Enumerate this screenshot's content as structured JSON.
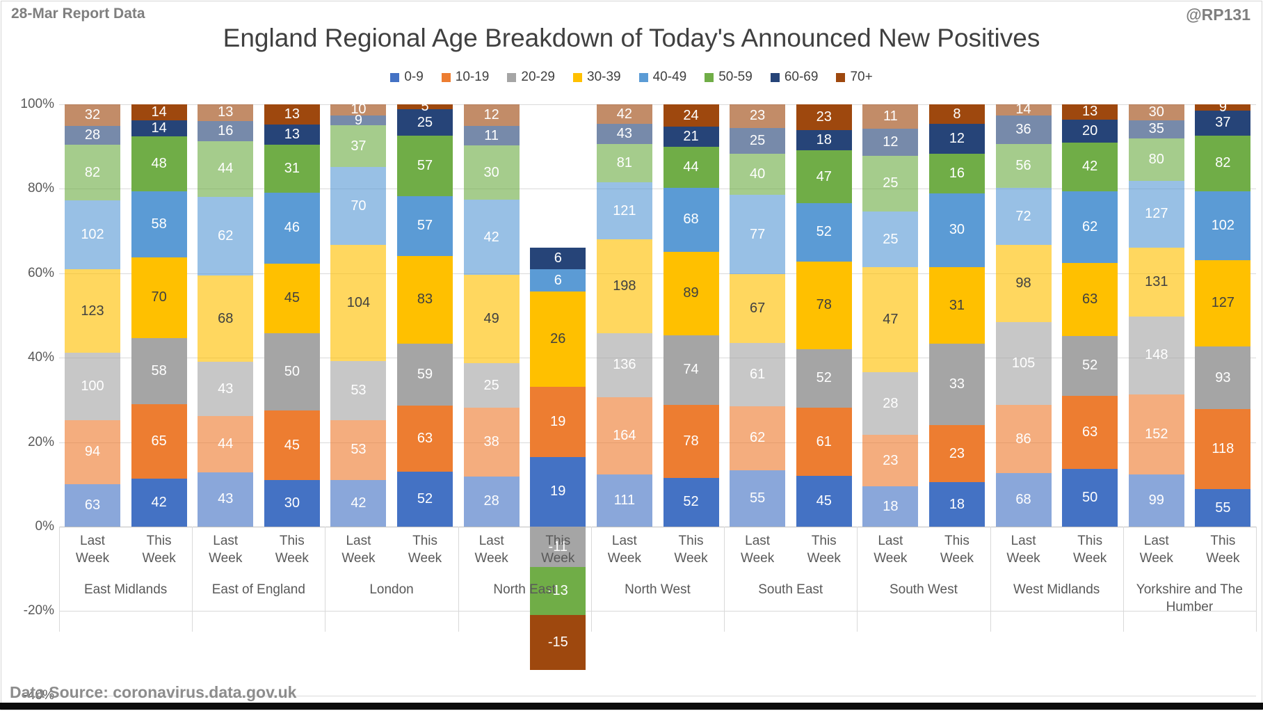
{
  "header": {
    "report_label": "28-Mar Report Data",
    "handle": "@RP131"
  },
  "title": "England Regional Age Breakdown of Today's Announced New Positives",
  "footer": {
    "source": "Data Source: coronavirus.data.gov.uk"
  },
  "chart_data": {
    "type": "bar",
    "stacked": true,
    "normalized_100pct": true,
    "title": "England Regional Age Breakdown of Today's Announced New Positives",
    "legend_position": "top",
    "grid": true,
    "age_groups": [
      "0-9",
      "10-19",
      "20-29",
      "30-39",
      "40-49",
      "50-59",
      "60-69",
      "70+"
    ],
    "colors": [
      "#4472C4",
      "#ED7D31",
      "#A5A5A5",
      "#FFC000",
      "#5B9BD5",
      "#70AD47",
      "#264478",
      "#9E480E"
    ],
    "label_dark_color": "#404040",
    "label_light_color": "#ffffff",
    "bar_labels": [
      "Last Week",
      "This Week"
    ],
    "y_ticks": [
      {
        "label": "100%",
        "value": 100
      },
      {
        "label": "80%",
        "value": 80
      },
      {
        "label": "60%",
        "value": 60
      },
      {
        "label": "40%",
        "value": 40
      },
      {
        "label": "20%",
        "value": 20
      },
      {
        "label": "0%",
        "value": 0
      },
      {
        "label": "-20%",
        "value": -20
      },
      {
        "label": "-40%",
        "value": -40
      }
    ],
    "ylim": [
      -40,
      100
    ],
    "regions": [
      {
        "name": "East Midlands",
        "last_week": [
          63,
          94,
          100,
          123,
          102,
          82,
          28,
          32
        ],
        "this_week": [
          42,
          65,
          58,
          70,
          58,
          48,
          14,
          14
        ]
      },
      {
        "name": "East of England",
        "last_week": [
          43,
          44,
          43,
          68,
          62,
          44,
          16,
          13
        ],
        "this_week": [
          30,
          45,
          50,
          45,
          46,
          31,
          13,
          13
        ]
      },
      {
        "name": "London",
        "last_week": [
          42,
          53,
          53,
          104,
          70,
          37,
          9,
          10
        ],
        "this_week": [
          52,
          63,
          59,
          83,
          57,
          57,
          25,
          5
        ]
      },
      {
        "name": "North East",
        "last_week": [
          28,
          38,
          25,
          49,
          42,
          30,
          11,
          12
        ],
        "this_week": [
          19,
          19,
          -11,
          26,
          6,
          -13,
          6,
          -15
        ]
      },
      {
        "name": "North West",
        "last_week": [
          111,
          164,
          136,
          198,
          121,
          81,
          43,
          42
        ],
        "this_week": [
          52,
          78,
          74,
          89,
          68,
          44,
          21,
          24
        ]
      },
      {
        "name": "South East",
        "last_week": [
          55,
          62,
          61,
          67,
          77,
          40,
          25,
          23
        ],
        "this_week": [
          45,
          61,
          52,
          78,
          52,
          47,
          18,
          23
        ]
      },
      {
        "name": "South West",
        "last_week": [
          18,
          23,
          28,
          47,
          25,
          25,
          12,
          11
        ],
        "this_week": [
          18,
          23,
          33,
          31,
          30,
          16,
          12,
          8
        ]
      },
      {
        "name": "West Midlands",
        "last_week": [
          68,
          86,
          105,
          98,
          72,
          56,
          36,
          14
        ],
        "this_week": [
          50,
          63,
          52,
          63,
          62,
          42,
          20,
          13
        ]
      },
      {
        "name": "Yorkshire and The Humber",
        "last_week": [
          99,
          152,
          148,
          131,
          127,
          80,
          35,
          30
        ],
        "this_week": [
          55,
          118,
          93,
          127,
          102,
          82,
          37,
          9
        ]
      }
    ]
  }
}
